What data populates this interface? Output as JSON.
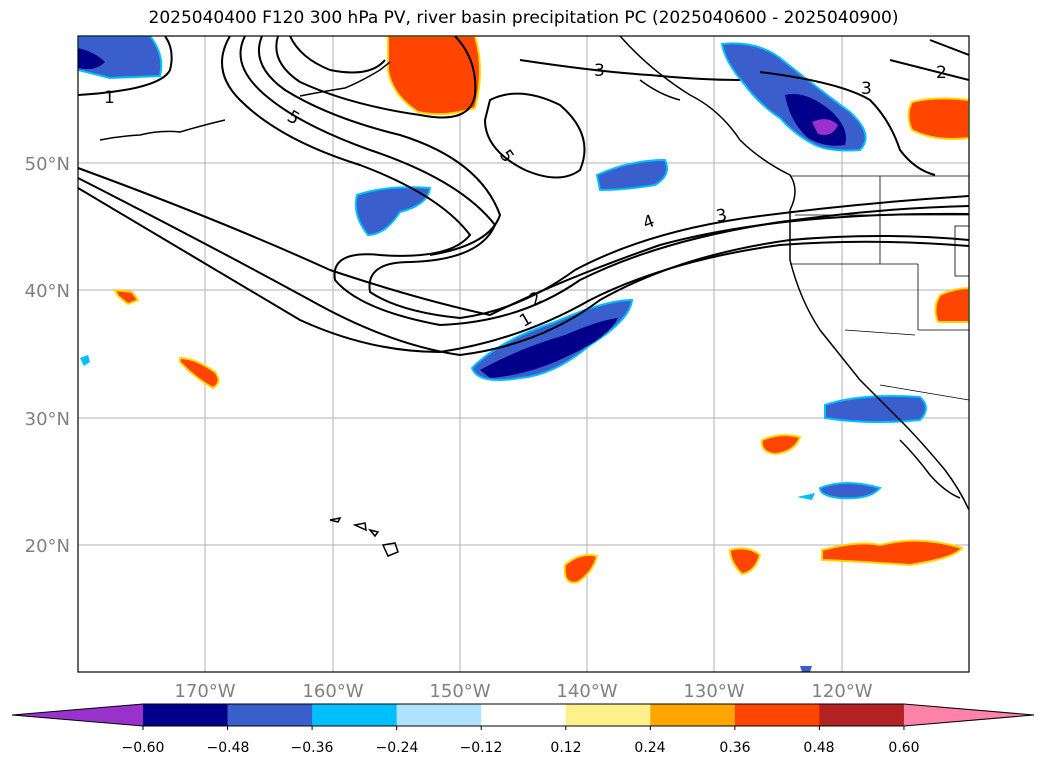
{
  "title": "2025040400 F120 300 hPa PV, river basin precipitation PC (2025040600 - 2025040900)",
  "map": {
    "lon_ticks": [
      "170°W",
      "160°W",
      "150°W",
      "140°W",
      "130°W",
      "120°W"
    ],
    "lat_ticks": [
      "50°N",
      "40°N",
      "30°N",
      "20°N"
    ],
    "tick_color": "#808080",
    "grid_color": "#b0b0b0"
  },
  "contour_labels": [
    {
      "text": "1",
      "where": "upper-left"
    },
    {
      "text": "5",
      "where": "upper-left"
    },
    {
      "text": "5",
      "where": "central-north"
    },
    {
      "text": "3",
      "where": "north"
    },
    {
      "text": "3",
      "where": "north-east"
    },
    {
      "text": "2",
      "where": "north-east"
    },
    {
      "text": "4",
      "where": "east-central"
    },
    {
      "text": "3",
      "where": "east-central"
    },
    {
      "text": "2",
      "where": "central"
    },
    {
      "text": "1",
      "where": "central"
    }
  ],
  "colorbar": {
    "ticks": [
      "−0.60",
      "−0.48",
      "−0.36",
      "−0.24",
      "−0.12",
      "0.12",
      "0.24",
      "0.36",
      "0.48",
      "0.60"
    ],
    "colors": [
      "#9932cc",
      "#00008b",
      "#3a5fcd",
      "#00bfff",
      "#b0e2ff",
      "#ffffff",
      "#fff08c",
      "#ffa500",
      "#ff4500",
      "#b22222",
      "#ff82ab"
    ],
    "extend": "both"
  }
}
